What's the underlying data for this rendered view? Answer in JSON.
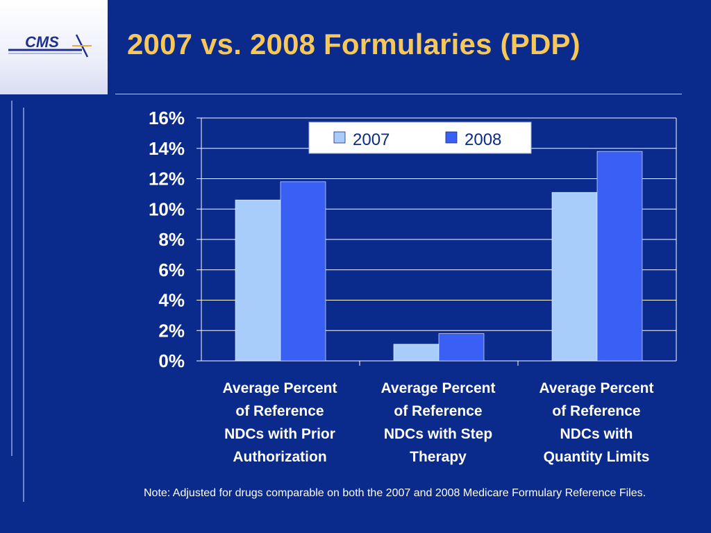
{
  "slide": {
    "title": "2007 vs. 2008 Formularies (PDP)",
    "logo_text": "CMS",
    "note": "Note: Adjusted for drugs comparable on both the 2007 and 2008 Medicare Formulary Reference Files."
  },
  "colors": {
    "background": "#0a2a8c",
    "title": "#f7c75a",
    "series_2007": "#a9cdfb",
    "series_2008": "#3a5ff5",
    "grid": "#ffffff",
    "axis_text": "#ffffff"
  },
  "chart_data": {
    "type": "bar",
    "categories": [
      "Average Percent of Reference NDCs with Prior Authorization",
      "Average Percent of Reference NDCs with Step Therapy",
      "Average Percent of Reference NDCs with Quantity Limits"
    ],
    "series": [
      {
        "name": "2007",
        "values": [
          10.6,
          1.1,
          11.1
        ]
      },
      {
        "name": "2008",
        "values": [
          11.8,
          1.8,
          13.8
        ]
      }
    ],
    "ylim": [
      0,
      16
    ],
    "yticks": [
      "0%",
      "2%",
      "4%",
      "6%",
      "8%",
      "10%",
      "12%",
      "14%",
      "16%"
    ],
    "grid": true,
    "legend_position": "top-center"
  }
}
